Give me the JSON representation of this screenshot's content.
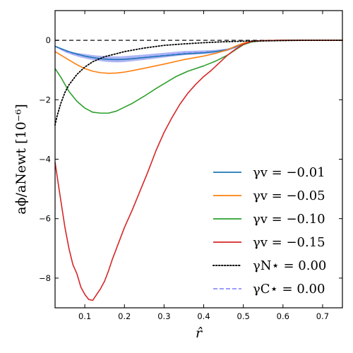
{
  "chart_data": {
    "type": "line",
    "title": "",
    "xlabel": "r̂",
    "ylabel": "aϕ/aNewt [10⁻⁶]",
    "xlim": [
      0.025,
      0.75
    ],
    "ylim": [
      -9.0,
      1.0
    ],
    "xticks": [
      0.1,
      0.2,
      0.3,
      0.4,
      0.5,
      0.6,
      0.7
    ],
    "xtick_labels": [
      "0.1",
      "0.2",
      "0.3",
      "0.4",
      "0.5",
      "0.6",
      "0.7"
    ],
    "yticks": [
      0,
      -2,
      -4,
      -6,
      -8
    ],
    "ytick_labels": [
      "0",
      "−2",
      "−4",
      "−6",
      "−8"
    ],
    "grid": false,
    "legend_position": "lower-right",
    "reference_line": {
      "y": 0,
      "style": "dashed",
      "color": "#333333"
    },
    "band": {
      "name": "γC⋆ = 0.00",
      "color": "#4a5ce8",
      "x": [
        0.025,
        0.05,
        0.07,
        0.09,
        0.11,
        0.13,
        0.15,
        0.17,
        0.19,
        0.21,
        0.25,
        0.3,
        0.35,
        0.4,
        0.43,
        0.46,
        0.48,
        0.5,
        0.52,
        0.55,
        0.6,
        0.65,
        0.7,
        0.75
      ],
      "upper": [
        -0.18,
        -0.32,
        -0.4,
        -0.44,
        -0.48,
        -0.51,
        -0.53,
        -0.54,
        -0.54,
        -0.52,
        -0.48,
        -0.42,
        -0.36,
        -0.34,
        -0.32,
        -0.28,
        -0.2,
        -0.1,
        -0.04,
        -0.01,
        0.0,
        0.0,
        0.0,
        0.0
      ],
      "lower": [
        -0.22,
        -0.4,
        -0.5,
        -0.58,
        -0.64,
        -0.68,
        -0.72,
        -0.74,
        -0.74,
        -0.72,
        -0.66,
        -0.58,
        -0.5,
        -0.46,
        -0.43,
        -0.36,
        -0.26,
        -0.13,
        -0.05,
        -0.01,
        0.0,
        0.0,
        0.0,
        0.0
      ]
    },
    "series": [
      {
        "legend": "γv = −0.01",
        "color": "#1f77b4",
        "style": "solid",
        "x": [
          0.025,
          0.04,
          0.06,
          0.08,
          0.1,
          0.12,
          0.14,
          0.16,
          0.18,
          0.2,
          0.22,
          0.25,
          0.3,
          0.35,
          0.4,
          0.43,
          0.46,
          0.48,
          0.5,
          0.52,
          0.55,
          0.6,
          0.65,
          0.7,
          0.75
        ],
        "y": [
          -0.2,
          -0.28,
          -0.38,
          -0.46,
          -0.53,
          -0.58,
          -0.62,
          -0.64,
          -0.65,
          -0.64,
          -0.62,
          -0.58,
          -0.52,
          -0.46,
          -0.42,
          -0.38,
          -0.31,
          -0.22,
          -0.12,
          -0.05,
          -0.01,
          0.0,
          0.0,
          0.0,
          0.0
        ]
      },
      {
        "legend": "γv = −0.05",
        "color": "#ff7f0e",
        "style": "solid",
        "x": [
          0.025,
          0.04,
          0.06,
          0.08,
          0.1,
          0.12,
          0.14,
          0.16,
          0.18,
          0.2,
          0.22,
          0.25,
          0.3,
          0.35,
          0.4,
          0.43,
          0.46,
          0.48,
          0.5,
          0.52,
          0.55,
          0.6,
          0.65,
          0.7,
          0.75
        ],
        "y": [
          -0.38,
          -0.5,
          -0.66,
          -0.82,
          -0.95,
          -1.04,
          -1.09,
          -1.11,
          -1.1,
          -1.07,
          -1.02,
          -0.94,
          -0.8,
          -0.65,
          -0.53,
          -0.44,
          -0.32,
          -0.2,
          -0.1,
          -0.04,
          -0.01,
          0.0,
          0.0,
          0.0,
          0.0
        ]
      },
      {
        "legend": "γv = −0.10",
        "color": "#2ca02c",
        "style": "solid",
        "x": [
          0.025,
          0.04,
          0.06,
          0.08,
          0.1,
          0.12,
          0.14,
          0.16,
          0.18,
          0.2,
          0.22,
          0.25,
          0.28,
          0.3,
          0.33,
          0.36,
          0.4,
          0.43,
          0.46,
          0.48,
          0.5,
          0.52,
          0.55,
          0.6,
          0.65,
          0.7,
          0.75
        ],
        "y": [
          -0.95,
          -1.25,
          -1.72,
          -2.05,
          -2.28,
          -2.42,
          -2.45,
          -2.45,
          -2.38,
          -2.25,
          -2.12,
          -1.88,
          -1.62,
          -1.46,
          -1.22,
          -1.04,
          -0.86,
          -0.7,
          -0.5,
          -0.32,
          -0.15,
          -0.06,
          -0.01,
          0.0,
          0.0,
          0.0,
          0.0
        ]
      },
      {
        "legend": "γv = −0.15",
        "color": "#d62728",
        "style": "solid",
        "x": [
          0.025,
          0.035,
          0.05,
          0.06,
          0.07,
          0.08,
          0.09,
          0.1,
          0.11,
          0.12,
          0.13,
          0.14,
          0.15,
          0.16,
          0.17,
          0.18,
          0.2,
          0.22,
          0.24,
          0.26,
          0.28,
          0.3,
          0.32,
          0.34,
          0.36,
          0.38,
          0.4,
          0.42,
          0.44,
          0.46,
          0.48,
          0.5,
          0.52,
          0.55,
          0.6,
          0.65,
          0.7,
          0.75
        ],
        "y": [
          -4.1,
          -5.0,
          -6.3,
          -7.0,
          -7.55,
          -7.85,
          -8.3,
          -8.55,
          -8.72,
          -8.75,
          -8.55,
          -8.35,
          -8.1,
          -7.75,
          -7.35,
          -7.0,
          -6.3,
          -5.7,
          -5.05,
          -4.4,
          -3.7,
          -3.1,
          -2.6,
          -2.15,
          -1.78,
          -1.48,
          -1.22,
          -1.0,
          -0.75,
          -0.5,
          -0.3,
          -0.13,
          -0.04,
          -0.01,
          0.0,
          0.0,
          0.0,
          0.0
        ]
      },
      {
        "legend": "γN⋆ = 0.00",
        "color": "#000000",
        "style": "dotted",
        "x": [
          0.025,
          0.03,
          0.04,
          0.05,
          0.06,
          0.08,
          0.1,
          0.12,
          0.15,
          0.18,
          0.2,
          0.25,
          0.3,
          0.35,
          0.4,
          0.45,
          0.5,
          0.55,
          0.6,
          0.65,
          0.7,
          0.75
        ],
        "y": [
          -2.85,
          -2.55,
          -2.1,
          -1.75,
          -1.5,
          -1.15,
          -0.9,
          -0.72,
          -0.55,
          -0.45,
          -0.38,
          -0.26,
          -0.17,
          -0.12,
          -0.08,
          -0.05,
          -0.03,
          -0.02,
          -0.01,
          0.0,
          0.0,
          0.0
        ]
      }
    ],
    "legend": [
      {
        "label": "γv  = −0.01",
        "color": "#1f77b4",
        "style": "solid"
      },
      {
        "label": "γv  = −0.05",
        "color": "#ff7f0e",
        "style": "solid"
      },
      {
        "label": "γv  = −0.10",
        "color": "#2ca02c",
        "style": "solid"
      },
      {
        "label": "γv  = −0.15",
        "color": "#d62728",
        "style": "solid"
      },
      {
        "label": "γN⋆ = 0.00",
        "color": "#000000",
        "style": "dotted"
      },
      {
        "label": "γC⋆ = 0.00",
        "color": "#8f8fff",
        "style": "dashed"
      }
    ]
  }
}
